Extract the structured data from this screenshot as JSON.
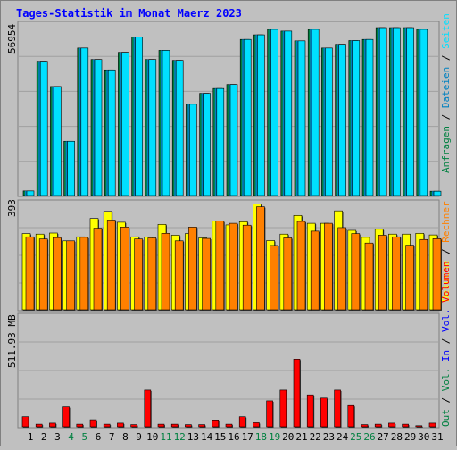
{
  "title": "Tages-Statistik im Monat Maerz 2023",
  "colors": {
    "background": "#c0c0c0",
    "panel_border_dark": "#808080",
    "panel_border_light": "#ffffff",
    "title": "#0000ff",
    "hits": "#008040",
    "files": "#0080c0",
    "pages": "#00e0ff",
    "visits": "#ffff00",
    "sites": "#ff8000",
    "kbytes": "#ff0000",
    "in": "#0000ff",
    "out": "#008040",
    "weekend": "#008040",
    "weekday": "#000000"
  },
  "labels": {
    "top_max": "56954",
    "mid_max": "393",
    "bottom_max": "511.93 MB"
  },
  "right_legends": {
    "top": [
      {
        "text": "Anfragen",
        "color": "#008040"
      },
      {
        "text": " / ",
        "color": "#000000"
      },
      {
        "text": "Dateien",
        "color": "#0080c0"
      },
      {
        "text": " / ",
        "color": "#000000"
      },
      {
        "text": "Seiten",
        "color": "#00e0ff"
      }
    ],
    "mid": [
      {
        "text": "Besuche",
        "color": "#ffff00"
      },
      {
        "text": " / ",
        "color": "#000000"
      },
      {
        "text": "Rechner",
        "color": "#ff8000"
      }
    ],
    "bottom": [
      {
        "text": "Out",
        "color": "#008040"
      },
      {
        "text": " / ",
        "color": "#000000"
      },
      {
        "text": "Vol. ",
        "color": "#008040"
      },
      {
        "text": "In",
        "color": "#0000ff"
      },
      {
        "text": " / ",
        "color": "#000000"
      },
      {
        "text": "Vol. ",
        "color": "#0000ff"
      },
      {
        "text": "Volumen",
        "color": "#ff0000"
      }
    ]
  },
  "chart_data": [
    {
      "type": "bar",
      "name": "requests",
      "categories": [
        "1",
        "2",
        "3",
        "4",
        "5",
        "6",
        "7",
        "8",
        "9",
        "10",
        "11",
        "12",
        "13",
        "14",
        "15",
        "16",
        "17",
        "18",
        "19",
        "20",
        "21",
        "22",
        "23",
        "24",
        "25",
        "26",
        "27",
        "28",
        "29",
        "30",
        "31"
      ],
      "weekend_days": [
        4,
        5,
        11,
        12,
        18,
        19,
        25,
        26
      ],
      "ymax": 56954,
      "series": [
        {
          "name": "Anfragen",
          "values": [
            1600,
            46800,
            38000,
            18900,
            51400,
            47400,
            43800,
            49900,
            55300,
            47400,
            50600,
            47100,
            31800,
            35600,
            37300,
            38700,
            54400,
            56000,
            57900,
            57300,
            53900,
            57900,
            51400,
            52700,
            54000,
            54400,
            58500,
            58500,
            58500,
            57900,
            1500
          ]
        },
        {
          "name": "Dateien",
          "values": [
            1600,
            46800,
            38000,
            18900,
            51400,
            47400,
            43800,
            49900,
            55300,
            47400,
            50600,
            47100,
            31800,
            35600,
            37300,
            38700,
            54400,
            56000,
            57900,
            57300,
            53900,
            57900,
            51400,
            52700,
            54000,
            54400,
            58500,
            58500,
            58500,
            57900,
            1500
          ]
        },
        {
          "name": "Seiten",
          "values": [
            1600,
            46800,
            38000,
            18900,
            51400,
            47400,
            43800,
            49900,
            55300,
            47400,
            50600,
            47100,
            31800,
            35600,
            37300,
            38700,
            54400,
            56000,
            57900,
            57300,
            53900,
            57900,
            51400,
            52700,
            54000,
            54400,
            58500,
            58500,
            58500,
            57900,
            1500
          ]
        }
      ]
    },
    {
      "type": "bar",
      "name": "visits",
      "categories": [
        "1",
        "2",
        "3",
        "4",
        "5",
        "6",
        "7",
        "8",
        "9",
        "10",
        "11",
        "12",
        "13",
        "14",
        "15",
        "16",
        "17",
        "18",
        "19",
        "20",
        "21",
        "22",
        "23",
        "24",
        "25",
        "26",
        "27",
        "28",
        "29",
        "30",
        "31"
      ],
      "ymax": 393,
      "series": [
        {
          "name": "Besuche",
          "values": [
            282,
            280,
            284,
            255,
            270,
            338,
            364,
            324,
            270,
            269,
            316,
            276,
            282,
            266,
            328,
            314,
            326,
            391,
            256,
            280,
            349,
            320,
            320,
            366,
            294,
            268,
            298,
            280,
            280,
            283,
            277
          ]
        },
        {
          "name": "Rechner",
          "values": [
            270,
            262,
            267,
            255,
            268,
            302,
            332,
            306,
            262,
            266,
            283,
            255,
            306,
            264,
            328,
            320,
            313,
            381,
            238,
            266,
            327,
            291,
            320,
            304,
            282,
            247,
            276,
            270,
            239,
            260,
            263
          ]
        }
      ]
    },
    {
      "type": "bar",
      "name": "volume",
      "categories": [
        "1",
        "2",
        "3",
        "4",
        "5",
        "6",
        "7",
        "8",
        "9",
        "10",
        "11",
        "12",
        "13",
        "14",
        "15",
        "16",
        "17",
        "18",
        "19",
        "20",
        "21",
        "22",
        "23",
        "24",
        "25",
        "26",
        "27",
        "28",
        "29",
        "30",
        "31"
      ],
      "ymax": 511.93,
      "unit": "MB",
      "series": [
        {
          "name": "Volumen",
          "values": [
            47,
            12,
            17,
            93,
            12,
            33,
            12,
            17,
            10,
            171,
            12,
            12,
            10,
            10,
            32,
            12,
            47,
            19,
            121,
            171,
            315,
            149,
            134,
            171,
            99,
            10,
            12,
            17,
            12,
            5,
            17
          ]
        }
      ]
    }
  ]
}
